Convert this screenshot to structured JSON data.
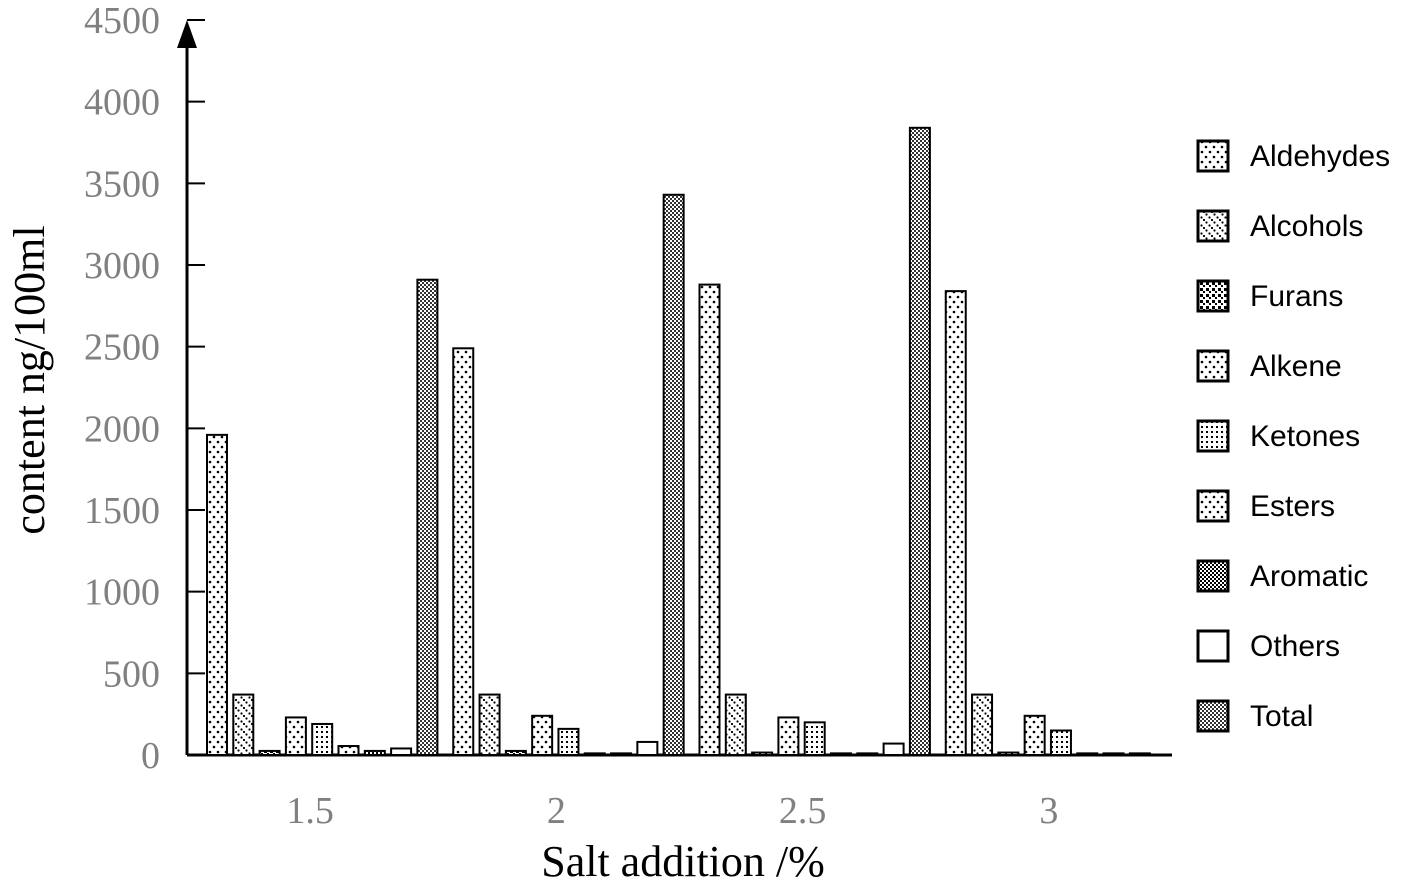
{
  "chart_data": {
    "type": "bar",
    "xlabel": "Salt addition /%",
    "ylabel": "content ng/100ml",
    "ylim": [
      0,
      4500
    ],
    "yticks": [
      0,
      500,
      1000,
      1500,
      2000,
      2500,
      3000,
      3500,
      4000,
      4500
    ],
    "categories": [
      "1.5",
      "2",
      "2.5",
      "3"
    ],
    "legend_position": "right",
    "grid": false,
    "series": [
      {
        "name": "Aldehydes",
        "pattern": "dots-sparse",
        "values": [
          1960,
          2490,
          2880,
          2840
        ]
      },
      {
        "name": "Alcohols",
        "pattern": "diagonal-dots",
        "values": [
          370,
          370,
          370,
          370
        ]
      },
      {
        "name": "Furans",
        "pattern": "blocks",
        "values": [
          25,
          25,
          15,
          15
        ]
      },
      {
        "name": "Alkene",
        "pattern": "dots-sparse",
        "values": [
          230,
          240,
          230,
          240
        ]
      },
      {
        "name": "Ketones",
        "pattern": "dots-grid",
        "values": [
          190,
          160,
          200,
          150
        ]
      },
      {
        "name": "Esters",
        "pattern": "dots-sparse",
        "values": [
          55,
          10,
          10,
          10
        ]
      },
      {
        "name": "Aromatic",
        "pattern": "dense-check",
        "values": [
          25,
          10,
          10,
          10
        ]
      },
      {
        "name": "Others",
        "pattern": "plain",
        "values": [
          40,
          80,
          70,
          10
        ]
      },
      {
        "name": "Total",
        "pattern": "check",
        "values": [
          2910,
          3430,
          3840,
          null
        ]
      }
    ]
  }
}
